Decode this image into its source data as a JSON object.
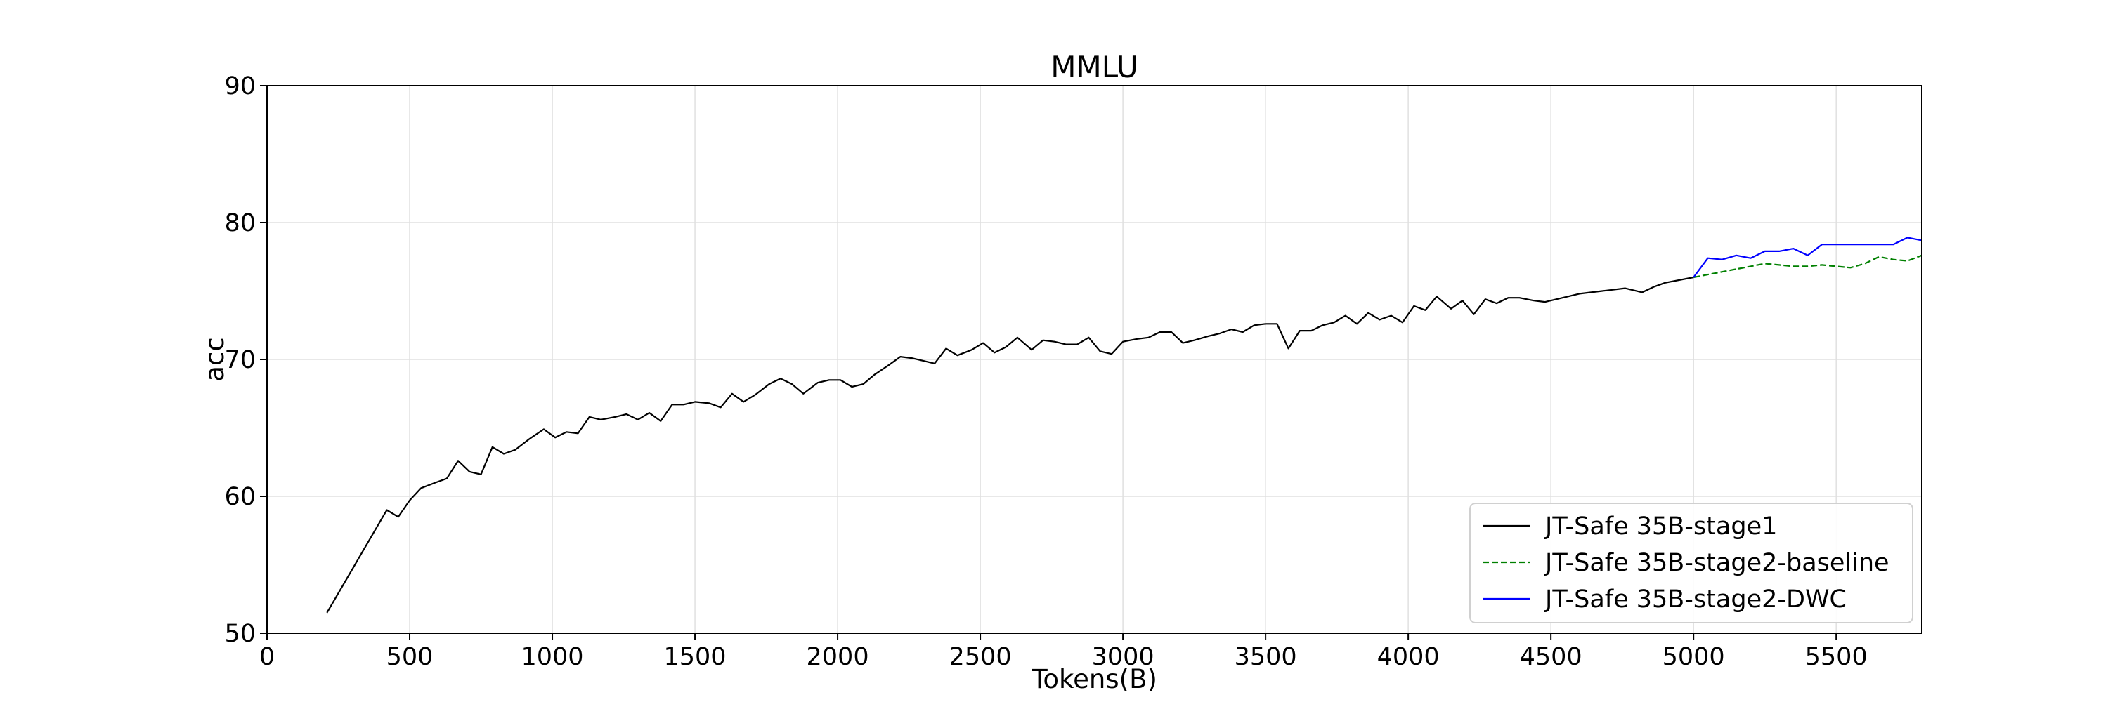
{
  "chart_data": {
    "type": "line",
    "title": "MMLU",
    "xlabel": "Tokens(B)",
    "ylabel": "acc",
    "xlim": [
      0,
      5800
    ],
    "ylim": [
      50,
      90
    ],
    "xticks": [
      0,
      500,
      1000,
      1500,
      2000,
      2500,
      3000,
      3500,
      4000,
      4500,
      5000,
      5500
    ],
    "yticks": [
      50,
      60,
      70,
      80,
      90
    ],
    "grid": true,
    "legend_position": "lower-right",
    "series": [
      {
        "name": "JT-Safe 35B-stage1",
        "color": "#000000",
        "dash": "solid",
        "x": [
          210,
          420,
          460,
          500,
          540,
          590,
          630,
          670,
          710,
          750,
          790,
          830,
          870,
          920,
          970,
          1010,
          1050,
          1090,
          1130,
          1170,
          1220,
          1260,
          1300,
          1340,
          1380,
          1420,
          1460,
          1500,
          1550,
          1590,
          1630,
          1670,
          1710,
          1760,
          1800,
          1840,
          1880,
          1930,
          1970,
          2010,
          2050,
          2090,
          2130,
          2180,
          2220,
          2260,
          2300,
          2340,
          2380,
          2420,
          2470,
          2510,
          2550,
          2590,
          2630,
          2680,
          2720,
          2760,
          2800,
          2840,
          2880,
          2920,
          2960,
          3000,
          3050,
          3090,
          3130,
          3170,
          3210,
          3250,
          3300,
          3340,
          3380,
          3420,
          3460,
          3500,
          3540,
          3580,
          3620,
          3660,
          3700,
          3740,
          3780,
          3820,
          3860,
          3900,
          3940,
          3980,
          4020,
          4060,
          4100,
          4150,
          4190,
          4230,
          4270,
          4310,
          4350,
          4390,
          4440,
          4480,
          4520,
          4560,
          4600,
          4680,
          4760,
          4820,
          4860,
          4900,
          5000
        ],
        "y": [
          51.5,
          59.0,
          58.5,
          59.7,
          60.6,
          61.0,
          61.3,
          62.6,
          61.8,
          61.6,
          63.6,
          63.1,
          63.4,
          64.2,
          64.9,
          64.3,
          64.7,
          64.6,
          65.8,
          65.6,
          65.8,
          66.0,
          65.6,
          66.1,
          65.5,
          66.7,
          66.7,
          66.9,
          66.8,
          66.5,
          67.5,
          66.9,
          67.4,
          68.2,
          68.6,
          68.2,
          67.5,
          68.3,
          68.5,
          68.5,
          68.0,
          68.2,
          68.9,
          69.6,
          70.2,
          70.1,
          69.9,
          69.7,
          70.8,
          70.3,
          70.7,
          71.2,
          70.5,
          70.9,
          71.6,
          70.7,
          71.4,
          71.3,
          71.1,
          71.1,
          71.6,
          70.6,
          70.4,
          71.3,
          71.5,
          71.6,
          72.0,
          72.0,
          71.2,
          71.4,
          71.7,
          71.9,
          72.2,
          72.0,
          72.5,
          72.6,
          72.6,
          70.8,
          72.1,
          72.1,
          72.5,
          72.7,
          73.2,
          72.6,
          73.4,
          72.9,
          73.2,
          72.7,
          73.9,
          73.6,
          74.6,
          73.7,
          74.3,
          73.3,
          74.4,
          74.1,
          74.5,
          74.5,
          74.3,
          74.2,
          74.4,
          74.6,
          74.8,
          75.0,
          75.2,
          74.9,
          75.3,
          75.6,
          76.0
        ]
      },
      {
        "name": "JT-Safe 35B-stage2-baseline",
        "color": "#008000",
        "dash": "dashed",
        "x": [
          5000,
          5050,
          5100,
          5150,
          5200,
          5250,
          5300,
          5350,
          5400,
          5450,
          5500,
          5550,
          5600,
          5650,
          5700,
          5750,
          5800
        ],
        "y": [
          76.0,
          76.2,
          76.4,
          76.6,
          76.8,
          77.0,
          76.9,
          76.8,
          76.8,
          76.9,
          76.8,
          76.7,
          77.0,
          77.5,
          77.3,
          77.2,
          77.6
        ]
      },
      {
        "name": "JT-Safe 35B-stage2-DWC",
        "color": "#0000ff",
        "dash": "solid",
        "x": [
          5000,
          5050,
          5100,
          5150,
          5200,
          5250,
          5300,
          5350,
          5400,
          5450,
          5500,
          5550,
          5600,
          5650,
          5700,
          5750,
          5800
        ],
        "y": [
          76.0,
          77.4,
          77.3,
          77.6,
          77.4,
          77.9,
          77.9,
          78.1,
          77.6,
          78.4,
          78.4,
          78.4,
          78.4,
          78.4,
          78.4,
          78.9,
          78.7
        ]
      }
    ]
  }
}
